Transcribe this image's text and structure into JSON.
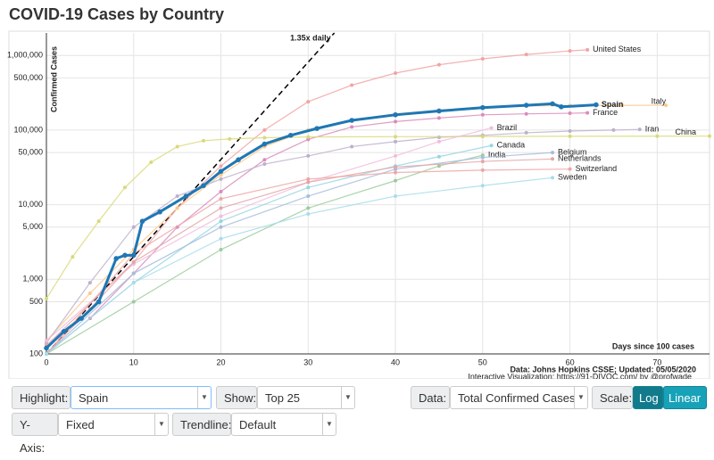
{
  "title": "COVID-19 Cases by Country",
  "controls": {
    "highlight_label": "Highlight:",
    "highlight_value": "Spain",
    "show_label": "Show:",
    "show_value": "Top 25",
    "data_label": "Data:",
    "data_value": "Total Confirmed Cases",
    "scale_label": "Scale:",
    "scale_options": [
      "Log",
      "Linear"
    ],
    "yaxis_label": "Y-Axis:",
    "yaxis_value": "Fixed",
    "trendline_label": "Trendline:",
    "trendline_value": "Default"
  },
  "chart_data": {
    "type": "line",
    "log_scale": true,
    "grid": true,
    "y_label": "Confirmed Cases",
    "x_label": "Days since 100 cases",
    "source": "Data: Johns Hopkins CSSE; Updated: 05/05/2020",
    "credit": "Interactive Visualization: https://91-DIVOC.com/ by @profwade_",
    "trendline": {
      "label": "1.35x daily",
      "base": 100,
      "rate": 1.35
    },
    "xlim": [
      0,
      76
    ],
    "xticks": [
      0,
      10,
      20,
      30,
      40,
      50,
      60,
      70
    ],
    "ylim": [
      100,
      2000000
    ],
    "yticks": [
      100,
      {
        "value": 500,
        "label": "500"
      },
      {
        "value": 1000,
        "label": "1,000"
      },
      {
        "value": 5000,
        "label": "5,000"
      },
      {
        "value": 10000,
        "label": "10,000"
      },
      {
        "value": 50000,
        "label": "50,000"
      },
      {
        "value": 100000,
        "label": "100,000"
      },
      {
        "value": 500000,
        "label": "500,000"
      },
      {
        "value": 1000000,
        "label": "1,000,000"
      }
    ],
    "highlight": "Spain",
    "series": [
      {
        "name": "United States",
        "color": "#f2a3a3",
        "x": [
          0,
          5,
          10,
          15,
          20,
          25,
          30,
          35,
          40,
          45,
          50,
          55,
          60,
          62
        ],
        "values": [
          100,
          400,
          1700,
          9000,
          33000,
          100000,
          240000,
          400000,
          580000,
          750000,
          900000,
          1030000,
          1150000,
          1190000
        ]
      },
      {
        "name": "Italy",
        "color": "#fcc98a",
        "x": [
          0,
          5,
          10,
          15,
          20,
          25,
          30,
          35,
          40,
          45,
          50,
          55,
          60,
          66,
          71
        ],
        "values": [
          150,
          650,
          2500,
          9000,
          25000,
          60000,
          100000,
          135000,
          165000,
          185000,
          200000,
          210000,
          213000,
          214000,
          215000
        ]
      },
      {
        "name": "France",
        "color": "#d98cbc",
        "x": [
          0,
          5,
          10,
          15,
          20,
          25,
          30,
          35,
          40,
          45,
          50,
          55,
          60,
          62
        ],
        "values": [
          100,
          300,
          1200,
          5000,
          15000,
          40000,
          75000,
          110000,
          130000,
          145000,
          160000,
          165000,
          168000,
          170000
        ]
      },
      {
        "name": "Iran",
        "color": "#bdb0cc",
        "x": [
          0,
          5,
          10,
          15,
          20,
          25,
          30,
          35,
          40,
          45,
          50,
          55,
          60,
          65,
          68
        ],
        "values": [
          140,
          900,
          5000,
          13000,
          22000,
          35000,
          45000,
          60000,
          70000,
          80000,
          85000,
          92000,
          97000,
          100000,
          102000
        ]
      },
      {
        "name": "China",
        "color": "#d9d97a",
        "x": [
          0,
          3,
          6,
          9,
          12,
          15,
          18,
          21,
          25,
          30,
          40,
          50,
          60,
          70,
          76
        ],
        "values": [
          550,
          2000,
          6000,
          17000,
          37000,
          60000,
          72000,
          76000,
          79000,
          80800,
          81500,
          82000,
          82600,
          82800,
          83000
        ]
      },
      {
        "name": "Brazil",
        "color": "#f2bcdc",
        "x": [
          0,
          10,
          20,
          30,
          40,
          45,
          51
        ],
        "values": [
          150,
          1600,
          7000,
          20000,
          45000,
          70000,
          107000
        ]
      },
      {
        "name": "Canada",
        "color": "#94d6e2",
        "x": [
          0,
          10,
          20,
          30,
          40,
          45,
          51
        ],
        "values": [
          100,
          900,
          6000,
          17000,
          33000,
          44000,
          62000
        ]
      },
      {
        "name": "India",
        "color": "#9ccc9c",
        "x": [
          0,
          10,
          20,
          30,
          40,
          45,
          50
        ],
        "values": [
          100,
          500,
          2500,
          9000,
          21000,
          33000,
          46000
        ]
      },
      {
        "name": "Belgium",
        "color": "#a6bcdc",
        "x": [
          0,
          10,
          20,
          30,
          40,
          50,
          58
        ],
        "values": [
          100,
          1200,
          5000,
          13000,
          30000,
          43000,
          50000
        ]
      },
      {
        "name": "Netherlands",
        "color": "#e3a6a6",
        "x": [
          0,
          10,
          20,
          30,
          40,
          50,
          58
        ],
        "values": [
          130,
          1700,
          9000,
          20000,
          32000,
          38000,
          41000
        ]
      },
      {
        "name": "Switzerland",
        "color": "#f0a4a4",
        "x": [
          0,
          10,
          20,
          30,
          40,
          50,
          60
        ],
        "values": [
          100,
          2200,
          12000,
          22000,
          27000,
          29000,
          30000
        ]
      },
      {
        "name": "Sweden",
        "color": "#a6dcea",
        "x": [
          0,
          10,
          20,
          30,
          40,
          50,
          58
        ],
        "values": [
          100,
          900,
          3500,
          7500,
          13000,
          18000,
          23000
        ]
      },
      {
        "name": "Spain",
        "color": "#1f77b4",
        "x": [
          0,
          2,
          4,
          6,
          8,
          9,
          10,
          11,
          13,
          16,
          18,
          20,
          22,
          25,
          28,
          31,
          35,
          40,
          45,
          50,
          55,
          58,
          59,
          63
        ],
        "values": [
          120,
          200,
          300,
          500,
          1900,
          2100,
          2100,
          6000,
          8000,
          13000,
          18000,
          28000,
          40000,
          65000,
          85000,
          105000,
          135000,
          160000,
          180000,
          200000,
          215000,
          225000,
          205000,
          218000
        ]
      }
    ]
  }
}
